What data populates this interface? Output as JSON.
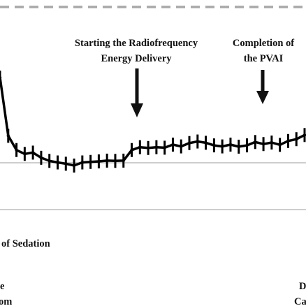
{
  "chart_data": {
    "type": "line",
    "title": "",
    "xlabel": "",
    "ylabel": "",
    "grid": true,
    "colors": {
      "series": "#000000",
      "grid": "#9e9e9e",
      "reference": "#a8a8a8",
      "text": "#111111"
    },
    "reference_line": {
      "style": "dashed",
      "position": "top"
    },
    "series": [
      {
        "values": [
          80.5,
          58,
          52.5,
          51,
          51.5,
          49.5,
          48.3,
          47.7,
          47.2,
          46.5,
          47.7,
          47.9,
          48.1,
          48.4,
          48.3,
          48.4,
          52.5,
          53.6,
          53.3,
          53.6,
          53.4,
          54.6,
          53.9,
          55.2,
          55.8,
          55.3,
          54.3,
          53.9,
          54.6,
          53.8,
          54.3,
          55.6,
          54.8,
          55.4,
          54.5,
          56,
          56.7,
          58.3
        ],
        "error_bars": true
      }
    ],
    "annotations": [
      {
        "id": "rf",
        "lines": [
          "Starting the Radiofrequency",
          "Energy Delivery"
        ],
        "arrow_index": 17
      },
      {
        "id": "pvai",
        "lines": [
          "Completion of",
          "the PVAI"
        ],
        "arrow_index": 33
      },
      {
        "id": "sedation",
        "lines": [
          "of Sedation"
        ]
      },
      {
        "id": "bottom-left",
        "lines": [
          "e",
          "om"
        ]
      },
      {
        "id": "bottom-right",
        "lines": [
          "D",
          "Ca"
        ]
      }
    ]
  }
}
